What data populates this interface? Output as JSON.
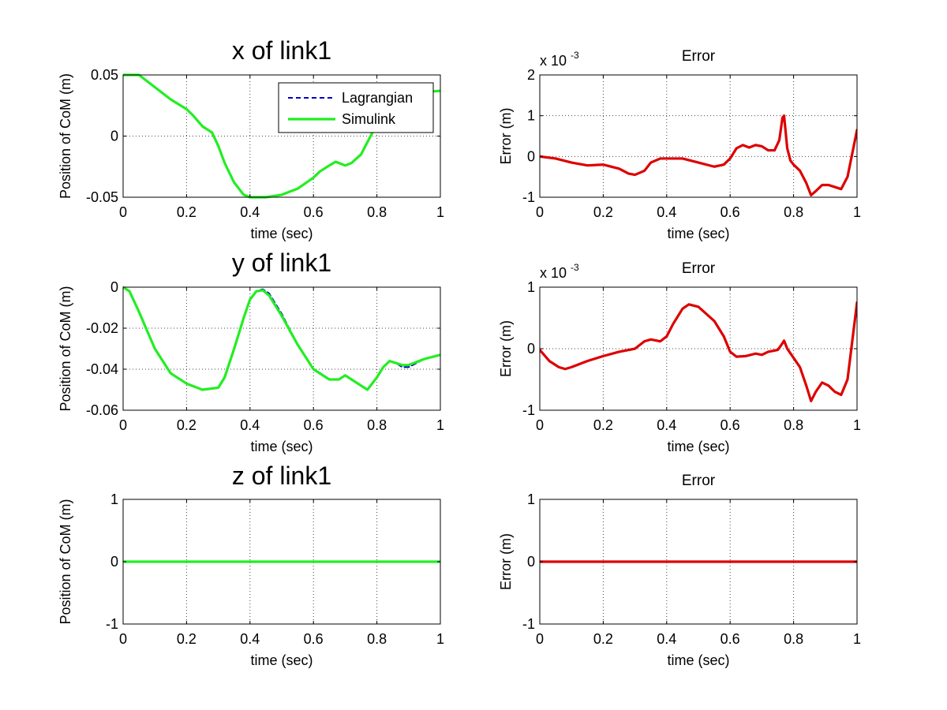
{
  "chart_data": [
    {
      "id": "x_link1",
      "type": "line",
      "title": "x of link1",
      "xlabel": "time (sec)",
      "ylabel": "Position of CoM (m)",
      "xlim": [
        0,
        1
      ],
      "ylim": [
        -0.05,
        0.05
      ],
      "xticks": [
        0,
        0.2,
        0.4,
        0.6,
        0.8,
        1
      ],
      "xtick_labels": [
        "0",
        "0.2",
        "0.4",
        "0.6",
        "0.8",
        "1"
      ],
      "yticks": [
        -0.05,
        0,
        0.05
      ],
      "ytick_labels": [
        "-0.05",
        "0",
        "0.05"
      ],
      "grid": true,
      "legend": {
        "placement": "top-right",
        "entries": [
          "Lagrangian",
          "Simulink"
        ]
      },
      "series": [
        {
          "name": "Lagrangian",
          "color": "#0000cc",
          "dashed": true,
          "x": [
            0,
            0.05,
            0.1,
            0.15,
            0.2,
            0.22,
            0.25,
            0.28,
            0.3,
            0.32,
            0.35,
            0.38,
            0.4,
            0.45,
            0.5,
            0.55,
            0.6,
            0.62,
            0.65,
            0.67,
            0.7,
            0.72,
            0.75,
            0.77,
            0.8,
            0.85,
            0.9,
            0.95,
            1.0
          ],
          "y": [
            0.05,
            0.05,
            0.04,
            0.03,
            0.022,
            0.017,
            0.008,
            0.003,
            -0.008,
            -0.022,
            -0.038,
            -0.048,
            -0.05,
            -0.05,
            -0.048,
            -0.043,
            -0.034,
            -0.029,
            -0.024,
            -0.021,
            -0.024,
            -0.022,
            -0.015,
            -0.005,
            0.01,
            0.03,
            0.036,
            0.036,
            0.037
          ]
        },
        {
          "name": "Simulink",
          "color": "#22ee22",
          "dashed": false,
          "x": [
            0,
            0.05,
            0.1,
            0.15,
            0.2,
            0.22,
            0.25,
            0.28,
            0.3,
            0.32,
            0.35,
            0.38,
            0.4,
            0.45,
            0.5,
            0.55,
            0.6,
            0.62,
            0.65,
            0.67,
            0.7,
            0.72,
            0.75,
            0.77,
            0.8,
            0.85,
            0.9,
            0.95,
            1.0
          ],
          "y": [
            0.05,
            0.05,
            0.04,
            0.03,
            0.022,
            0.017,
            0.008,
            0.003,
            -0.008,
            -0.022,
            -0.038,
            -0.048,
            -0.05,
            -0.05,
            -0.048,
            -0.043,
            -0.034,
            -0.029,
            -0.024,
            -0.021,
            -0.024,
            -0.022,
            -0.015,
            -0.005,
            0.01,
            0.03,
            0.036,
            0.036,
            0.037
          ]
        }
      ]
    },
    {
      "id": "x_error",
      "type": "line",
      "title": "Error",
      "xlabel": "time (sec)",
      "ylabel": "Error (m)",
      "exponent_label": "x 10",
      "exponent_power": "-3",
      "xlim": [
        0,
        1
      ],
      "ylim": [
        -1,
        2
      ],
      "xticks": [
        0,
        0.2,
        0.4,
        0.6,
        0.8,
        1
      ],
      "xtick_labels": [
        "0",
        "0.2",
        "0.4",
        "0.6",
        "0.8",
        "1"
      ],
      "yticks": [
        -1,
        0,
        1,
        2
      ],
      "ytick_labels": [
        "-1",
        "0",
        "1",
        "2"
      ],
      "grid": true,
      "series": [
        {
          "color": "#dd0000",
          "dashed": false,
          "x": [
            0,
            0.05,
            0.1,
            0.15,
            0.2,
            0.25,
            0.28,
            0.3,
            0.33,
            0.35,
            0.38,
            0.42,
            0.45,
            0.5,
            0.55,
            0.58,
            0.6,
            0.62,
            0.64,
            0.66,
            0.68,
            0.7,
            0.72,
            0.74,
            0.755,
            0.765,
            0.77,
            0.78,
            0.79,
            0.8,
            0.82,
            0.84,
            0.855,
            0.87,
            0.89,
            0.91,
            0.93,
            0.95,
            0.97,
            1.0
          ],
          "y": [
            0,
            -0.05,
            -0.15,
            -0.22,
            -0.2,
            -0.3,
            -0.42,
            -0.45,
            -0.35,
            -0.15,
            -0.05,
            -0.05,
            -0.05,
            -0.15,
            -0.25,
            -0.2,
            -0.05,
            0.2,
            0.28,
            0.22,
            0.28,
            0.25,
            0.15,
            0.15,
            0.4,
            0.95,
            1.0,
            0.2,
            -0.1,
            -0.2,
            -0.35,
            -0.65,
            -0.95,
            -0.85,
            -0.7,
            -0.7,
            -0.75,
            -0.8,
            -0.5,
            0.65
          ]
        }
      ]
    },
    {
      "id": "y_link1",
      "type": "line",
      "title": "y of link1",
      "xlabel": "time (sec)",
      "ylabel": "Position of CoM (m)",
      "xlim": [
        0,
        1
      ],
      "ylim": [
        -0.06,
        0
      ],
      "xticks": [
        0,
        0.2,
        0.4,
        0.6,
        0.8,
        1
      ],
      "xtick_labels": [
        "0",
        "0.2",
        "0.4",
        "0.6",
        "0.8",
        "1"
      ],
      "yticks": [
        -0.06,
        -0.04,
        -0.02,
        0
      ],
      "ytick_labels": [
        "-0.06",
        "-0.04",
        "-0.02",
        "0"
      ],
      "grid": true,
      "series": [
        {
          "name": "Lagrangian",
          "color": "#0000cc",
          "dashed": true,
          "x": [
            0,
            0.02,
            0.05,
            0.1,
            0.15,
            0.2,
            0.25,
            0.3,
            0.32,
            0.35,
            0.38,
            0.4,
            0.42,
            0.44,
            0.46,
            0.5,
            0.55,
            0.6,
            0.65,
            0.68,
            0.7,
            0.72,
            0.75,
            0.77,
            0.8,
            0.82,
            0.84,
            0.86,
            0.88,
            0.9,
            0.95,
            1.0
          ],
          "y": [
            0,
            -0.002,
            -0.012,
            -0.03,
            -0.042,
            -0.047,
            -0.05,
            -0.049,
            -0.044,
            -0.03,
            -0.015,
            -0.006,
            -0.002,
            -0.001,
            -0.003,
            -0.013,
            -0.028,
            -0.04,
            -0.045,
            -0.045,
            -0.043,
            -0.045,
            -0.048,
            -0.05,
            -0.044,
            -0.039,
            -0.036,
            -0.037,
            -0.039,
            -0.039,
            -0.035,
            -0.033
          ]
        },
        {
          "name": "Simulink",
          "color": "#22ee22",
          "dashed": false,
          "x": [
            0,
            0.02,
            0.05,
            0.1,
            0.15,
            0.2,
            0.25,
            0.3,
            0.32,
            0.35,
            0.38,
            0.4,
            0.42,
            0.44,
            0.46,
            0.5,
            0.55,
            0.6,
            0.65,
            0.68,
            0.7,
            0.72,
            0.75,
            0.77,
            0.8,
            0.82,
            0.84,
            0.86,
            0.88,
            0.9,
            0.95,
            1.0
          ],
          "y": [
            0,
            -0.002,
            -0.012,
            -0.03,
            -0.042,
            -0.047,
            -0.05,
            -0.049,
            -0.044,
            -0.03,
            -0.015,
            -0.006,
            -0.002,
            -0.0015,
            -0.004,
            -0.014,
            -0.028,
            -0.04,
            -0.045,
            -0.045,
            -0.043,
            -0.045,
            -0.048,
            -0.05,
            -0.044,
            -0.039,
            -0.036,
            -0.037,
            -0.038,
            -0.038,
            -0.035,
            -0.033
          ]
        }
      ]
    },
    {
      "id": "y_error",
      "type": "line",
      "title": "Error",
      "xlabel": "time (sec)",
      "ylabel": "Error (m)",
      "exponent_label": "x 10",
      "exponent_power": "-3",
      "xlim": [
        0,
        1
      ],
      "ylim": [
        -1,
        1
      ],
      "xticks": [
        0,
        0.2,
        0.4,
        0.6,
        0.8,
        1
      ],
      "xtick_labels": [
        "0",
        "0.2",
        "0.4",
        "0.6",
        "0.8",
        "1"
      ],
      "yticks": [
        -1,
        0,
        1
      ],
      "ytick_labels": [
        "-1",
        "0",
        "1"
      ],
      "grid": true,
      "series": [
        {
          "color": "#dd0000",
          "dashed": false,
          "x": [
            0,
            0.03,
            0.06,
            0.08,
            0.1,
            0.15,
            0.2,
            0.25,
            0.3,
            0.33,
            0.35,
            0.38,
            0.4,
            0.42,
            0.45,
            0.47,
            0.5,
            0.55,
            0.58,
            0.6,
            0.62,
            0.65,
            0.68,
            0.7,
            0.72,
            0.75,
            0.76,
            0.77,
            0.78,
            0.8,
            0.82,
            0.84,
            0.855,
            0.87,
            0.89,
            0.91,
            0.93,
            0.95,
            0.97,
            1.0
          ],
          "y": [
            -0.02,
            -0.2,
            -0.3,
            -0.33,
            -0.3,
            -0.2,
            -0.12,
            -0.05,
            0.0,
            0.12,
            0.15,
            0.12,
            0.2,
            0.4,
            0.65,
            0.72,
            0.68,
            0.45,
            0.2,
            -0.05,
            -0.13,
            -0.12,
            -0.08,
            -0.1,
            -0.05,
            -0.02,
            0.05,
            0.13,
            0.0,
            -0.15,
            -0.3,
            -0.6,
            -0.85,
            -0.7,
            -0.55,
            -0.6,
            -0.7,
            -0.75,
            -0.5,
            0.75
          ]
        }
      ]
    },
    {
      "id": "z_link1",
      "type": "line",
      "title": "z of link1",
      "xlabel": "time (sec)",
      "ylabel": "Position of CoM (m)",
      "xlim": [
        0,
        1
      ],
      "ylim": [
        -1,
        1
      ],
      "xticks": [
        0,
        0.2,
        0.4,
        0.6,
        0.8,
        1
      ],
      "xtick_labels": [
        "0",
        "0.2",
        "0.4",
        "0.6",
        "0.8",
        "1"
      ],
      "yticks": [
        -1,
        0,
        1
      ],
      "ytick_labels": [
        "-1",
        "0",
        "1"
      ],
      "grid": true,
      "series": [
        {
          "name": "Lagrangian",
          "color": "#0000cc",
          "dashed": true,
          "x": [
            0,
            1
          ],
          "y": [
            0,
            0
          ]
        },
        {
          "name": "Simulink",
          "color": "#22ee22",
          "dashed": false,
          "x": [
            0,
            1
          ],
          "y": [
            0,
            0
          ]
        }
      ]
    },
    {
      "id": "z_error",
      "type": "line",
      "title": "Error",
      "xlabel": "time (sec)",
      "ylabel": "Error (m)",
      "xlim": [
        0,
        1
      ],
      "ylim": [
        -1,
        1
      ],
      "xticks": [
        0,
        0.2,
        0.4,
        0.6,
        0.8,
        1
      ],
      "xtick_labels": [
        "0",
        "0.2",
        "0.4",
        "0.6",
        "0.8",
        "1"
      ],
      "yticks": [
        -1,
        0,
        1
      ],
      "ytick_labels": [
        "-1",
        "0",
        "1"
      ],
      "grid": true,
      "series": [
        {
          "color": "#dd0000",
          "dashed": false,
          "x": [
            0,
            1
          ],
          "y": [
            0,
            0
          ]
        }
      ]
    }
  ]
}
